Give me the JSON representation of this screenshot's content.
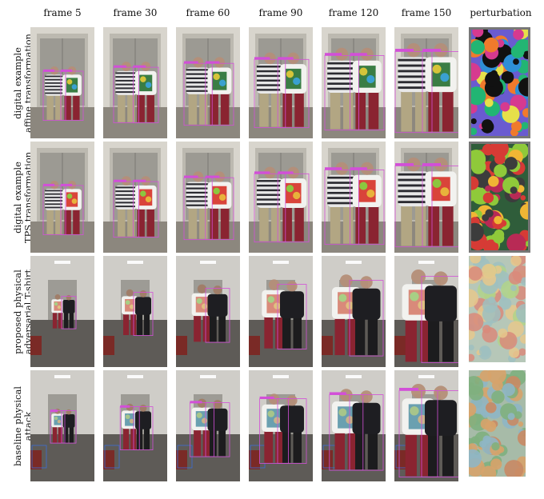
{
  "columns": [
    "frame 5",
    "frame 30",
    "frame 60",
    "frame 90",
    "frame 120",
    "frame 150",
    "perturbation"
  ],
  "rows": [
    {
      "label_lines": [
        "digital example",
        "affine transformation"
      ],
      "scene": "corridor",
      "pattern": "psychedelic"
    },
    {
      "label_lines": [
        "digital example",
        "TPS transformation"
      ],
      "scene": "corridor",
      "pattern": "fruit"
    },
    {
      "label_lines": [
        "proposed physical",
        "adversarial T-shirt"
      ],
      "scene": "hall",
      "pattern": "fruit-faded"
    },
    {
      "label_lines": [
        "baseline physical",
        "attack"
      ],
      "scene": "hall",
      "pattern": "balls"
    }
  ],
  "colors": {
    "bbox": "#d24fd8",
    "bbox_blue": "#3b6fd6",
    "frame_border": "#777777"
  }
}
